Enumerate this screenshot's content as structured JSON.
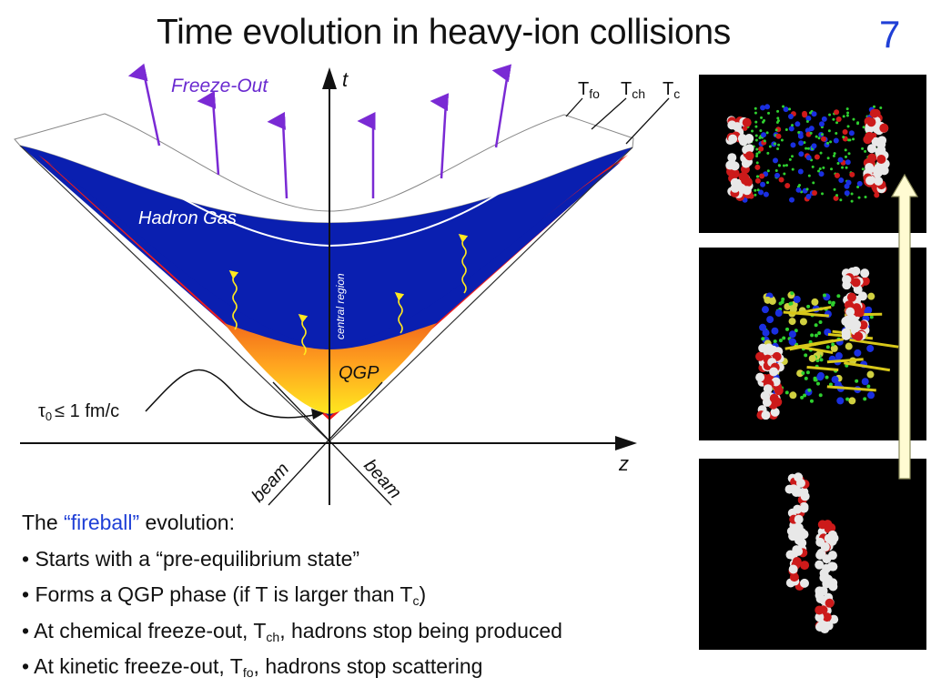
{
  "slide": {
    "title": "Time evolution in heavy-ion collisions",
    "number": "7"
  },
  "diagram": {
    "freeze_out": "Freeze-Out",
    "t_axis": "t",
    "z_axis": "z",
    "t_fo": "T",
    "t_fo_sub": "fo",
    "t_ch": "T",
    "t_ch_sub": "ch",
    "t_c": "T",
    "t_c_sub": "c",
    "hadron_gas": "Hadron Gas",
    "qgp": "QGP",
    "central_region": "central region",
    "beam_left": "beam",
    "beam_right": "beam",
    "tau0_symbol": "τ",
    "tau0_sub": "0",
    "tau0_rest": "≤ 1 fm/c"
  },
  "caption": {
    "intro_pre": "The ",
    "intro_highlight": "“fireball”",
    "intro_post": " evolution:",
    "b1": "• Starts with a “pre-equilibrium state”",
    "b2_pre": "• Forms a QGP phase (if T is larger than T",
    "b2_sub": "c",
    "b2_post": ")",
    "b3_pre": "• At chemical freeze-out, T",
    "b3_sub": "ch",
    "b3_post": ", hadrons stop being produced",
    "b4_pre": "• At kinetic freeze-out, T",
    "b4_sub": "fo",
    "b4_post": ", hadrons stop scattering"
  },
  "colors": {
    "hadron_gas": "#0a1fb0",
    "mixed_phase": "#ee1c1c",
    "qgp": "#ffd21f",
    "freeze_arrows": "#7a2ad4",
    "accent": "#1f3fd6",
    "time_arrow": "#fffbd2"
  },
  "panels": [
    "hadron-gas-snapshot",
    "qgp-snapshot",
    "initial-nuclei-snapshot"
  ]
}
